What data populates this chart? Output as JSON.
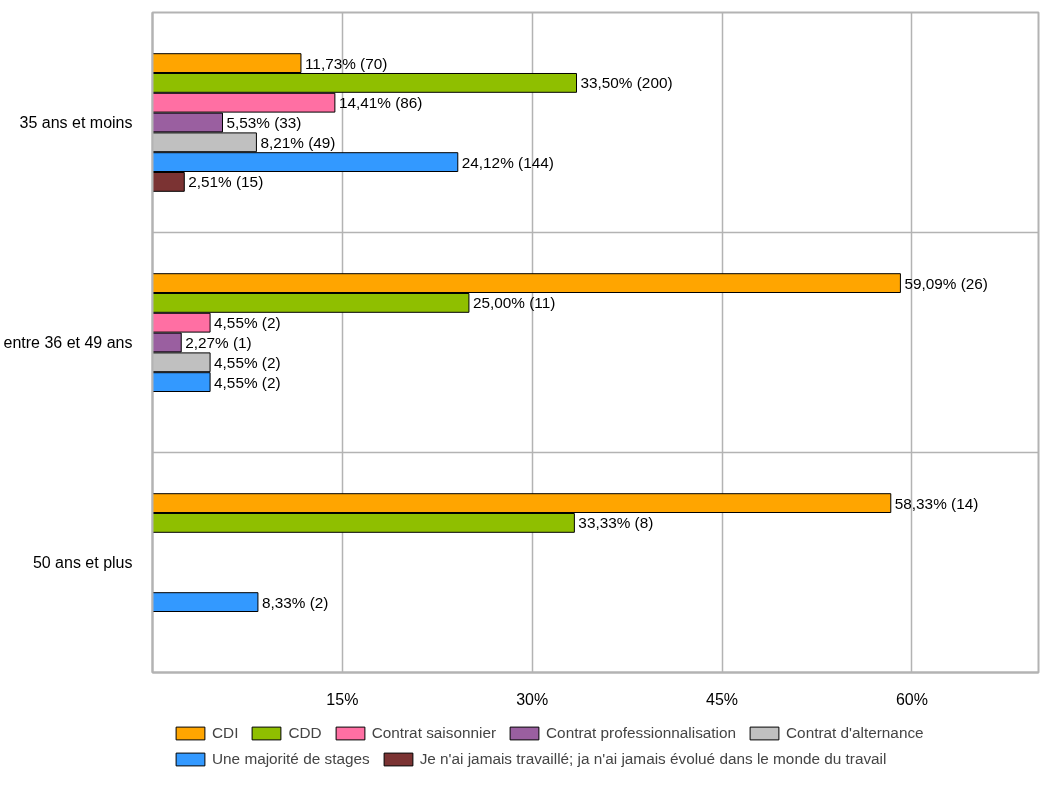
{
  "chart_data": {
    "type": "bar",
    "orientation": "horizontal",
    "categories": [
      "35 ans et moins",
      "entre 36 et 49 ans",
      "50 ans et plus"
    ],
    "series": [
      {
        "name": "CDI",
        "color": "#ffa500",
        "values": [
          11.73,
          59.09,
          58.33
        ],
        "value_labels": [
          "11,73% (70)",
          "59,09% (26)",
          "58,33% (14)"
        ]
      },
      {
        "name": "CDD",
        "color": "#8fbf00",
        "values": [
          33.5,
          25.0,
          33.33
        ],
        "value_labels": [
          "33,50% (200)",
          "25,00% (11)",
          "33,33% (8)"
        ]
      },
      {
        "name": "Contrat saisonnier",
        "color": "#ff6fa3",
        "values": [
          14.41,
          4.55,
          null
        ],
        "value_labels": [
          "14,41% (86)",
          "4,55% (2)",
          null
        ]
      },
      {
        "name": "Contrat professionnalisation",
        "color": "#9a5fa0",
        "values": [
          5.53,
          2.27,
          null
        ],
        "value_labels": [
          "5,53% (33)",
          "2,27% (1)",
          null
        ]
      },
      {
        "name": "Contrat d'alternance",
        "color": "#c0c0c0",
        "values": [
          8.21,
          4.55,
          null
        ],
        "value_labels": [
          "8,21% (49)",
          "4,55% (2)",
          null
        ]
      },
      {
        "name": "Une majorité de stages",
        "color": "#3399ff",
        "values": [
          24.12,
          4.55,
          8.33
        ],
        "value_labels": [
          "24,12% (144)",
          "4,55% (2)",
          "8,33% (2)"
        ]
      },
      {
        "name": "Je n'ai jamais travaillé; ja n'ai jamais évolué dans le monde du travail",
        "color": "#7b3333",
        "values": [
          2.51,
          null,
          null
        ],
        "value_labels": [
          "2,51% (15)",
          null,
          null
        ]
      }
    ],
    "xlim": [
      0,
      70
    ],
    "xticks": [
      {
        "value": 15,
        "label": "15%"
      },
      {
        "value": 30,
        "label": "30%"
      },
      {
        "value": 45,
        "label": "45%"
      },
      {
        "value": 60,
        "label": "60%"
      }
    ],
    "grid": true,
    "legend": "bottom"
  }
}
